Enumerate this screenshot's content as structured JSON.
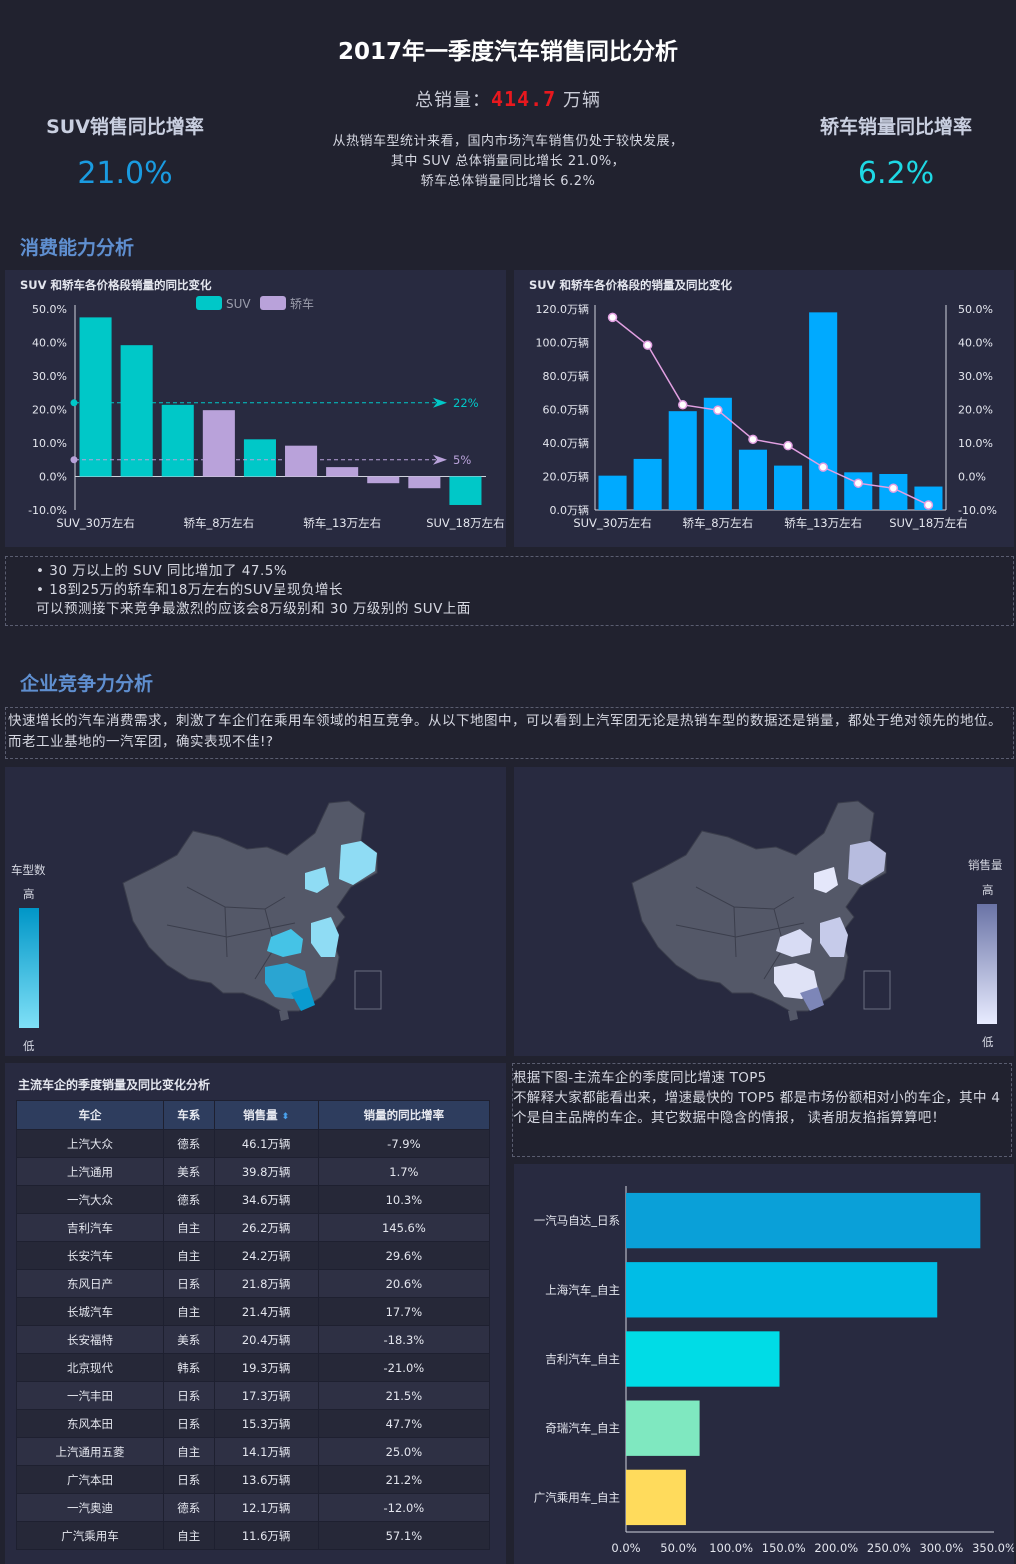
{
  "header": {
    "title": "2017年一季度汽车销售同比分析",
    "total_label": "总销量：",
    "total_value": "414.7",
    "total_unit": " 万辆",
    "desc_lines": [
      "从热销车型统计来看，国内市场汽车销售仍处于较快发展，",
      "其中 SUV 总体销量同比增长 21.0%，",
      "轿车总体销量同比增长 6.2%"
    ]
  },
  "kpi_left": {
    "label": "SUV销售同比增率",
    "value": "21.0%",
    "color": "#1a9be0"
  },
  "kpi_right": {
    "label": "轿车销量同比增率",
    "value": "6.2%",
    "color": "#1ed8e4"
  },
  "section1": "消费能力分析",
  "section2": "企业竞争力分析",
  "note1_lines": [
    "• 30 万以上的 SUV 同比增加了 47.5%",
    "• 18到25万的轿车和18万左右的SUV呈现负增长",
    "可以预测接下来竞争最激烈的应该会8万级别和 30 万级别的 SUV上面"
  ],
  "note2_text": "快速增长的汽车消费需求，刺激了车企们在乘用车领域的相互竞争。从以下地图中，可以看到上汽军团无论是热销车型的数据还是销量，都处于绝对领先的地位。而老工业基地的一汽军团，确实表现不佳!?",
  "note3_text": "根据下图-主流车企的季度同比增速 TOP5\n不解释大家都能看出来，增速最快的 TOP5 都是市场份额相对小的车企，其中 4 个是自主品牌的车企。其它数据中隐含的情报， 读者朋友掐指算算吧！",
  "map_left": {
    "legend_title": "车型数",
    "high": "高",
    "low": "低"
  },
  "map_right": {
    "legend_title": "销售量",
    "high": "高",
    "low": "低"
  },
  "table_title": "主流车企的季度销量及同比变化分析",
  "table": {
    "headers": [
      "车企",
      "车系",
      "销售量",
      "销量的同比增率"
    ],
    "rows": [
      [
        "上汽大众",
        "德系",
        "46.1万辆",
        "-7.9%"
      ],
      [
        "上汽通用",
        "美系",
        "39.8万辆",
        "1.7%"
      ],
      [
        "一汽大众",
        "德系",
        "34.6万辆",
        "10.3%"
      ],
      [
        "吉利汽车",
        "自主",
        "26.2万辆",
        "145.6%"
      ],
      [
        "长安汽车",
        "自主",
        "24.2万辆",
        "29.6%"
      ],
      [
        "东风日产",
        "日系",
        "21.8万辆",
        "20.6%"
      ],
      [
        "长城汽车",
        "自主",
        "21.4万辆",
        "17.7%"
      ],
      [
        "长安福特",
        "美系",
        "20.4万辆",
        "-18.3%"
      ],
      [
        "北京现代",
        "韩系",
        "19.3万辆",
        "-21.0%"
      ],
      [
        "一汽丰田",
        "日系",
        "17.3万辆",
        "21.5%"
      ],
      [
        "东风本田",
        "日系",
        "15.3万辆",
        "47.7%"
      ],
      [
        "上汽通用五菱",
        "自主",
        "14.1万辆",
        "25.0%"
      ],
      [
        "广汽本田",
        "日系",
        "13.6万辆",
        "21.2%"
      ],
      [
        "一汽奥迪",
        "德系",
        "12.1万辆",
        "-12.0%"
      ],
      [
        "广汽乘用车",
        "自主",
        "11.6万辆",
        "57.1%"
      ]
    ]
  },
  "chart_data": [
    {
      "type": "bar",
      "title": "SUV 和轿车各价格段销量的同比变化",
      "series": [
        {
          "name": "SUV",
          "color": "#00c8c8",
          "values": [
            47.5,
            39.2,
            21.4,
            null,
            11.1,
            null,
            null,
            null,
            null,
            -8.5
          ]
        },
        {
          "name": "轿车",
          "color": "#b9a2da",
          "values": [
            null,
            null,
            null,
            19.8,
            null,
            9.2,
            2.8,
            -2.0,
            -3.5,
            null
          ]
        }
      ],
      "tick_labels": [
        "SUV_30万左右",
        "轿车_8万左右",
        "轿车_13万左右",
        "SUV_18万左右"
      ],
      "ylim": [
        -10,
        50
      ],
      "yticks": [
        "50.0%",
        "40.0%",
        "30.0%",
        "20.0%",
        "10.0%",
        "0.0%",
        "-10.0%"
      ],
      "mark_lines": [
        {
          "value": 22,
          "label": "22%",
          "color": "#00c8c8"
        },
        {
          "value": 5,
          "label": "5%",
          "color": "#b9a2da"
        }
      ],
      "legend": "top-center"
    },
    {
      "type": "bar",
      "title": "SUV 和轿车各价格段的销量及同比变化",
      "bar_color": "#00aaff",
      "line_color": "#e2a0e2",
      "bar_values": [
        20.5,
        30.5,
        59,
        67,
        36,
        26.5,
        118,
        22.5,
        21.5,
        14
      ],
      "line_values": [
        47.5,
        39.2,
        21.4,
        19.8,
        11.1,
        9.2,
        2.8,
        -2.0,
        -3.5,
        -8.5
      ],
      "tick_labels": [
        "SUV_30万左右",
        "轿车_8万左右",
        "轿车_13万左右",
        "SUV_18万左右"
      ],
      "ylim_left": [
        0,
        120
      ],
      "ylim_right": [
        -10,
        50
      ],
      "yticks_left": [
        "120.0万辆",
        "100.0万辆",
        "80.0万辆",
        "60.0万辆",
        "40.0万辆",
        "20.0万辆",
        "0.0万辆"
      ],
      "yticks_right": [
        "50.0%",
        "40.0%",
        "30.0%",
        "20.0%",
        "10.0%",
        "0.0%",
        "-10.0%"
      ]
    },
    {
      "type": "bar",
      "orientation": "horizontal",
      "categories": [
        "一汽马自达_日系",
        "上海汽车_自主",
        "吉利汽车_自主",
        "奇瑞汽车_自主",
        "广汽乘用车_自主"
      ],
      "values": [
        337,
        296,
        146,
        70,
        57
      ],
      "colors": [
        "#0aa0d8",
        "#00bde6",
        "#00dce6",
        "#7fe8c0",
        "#ffdb5c"
      ],
      "xlim": [
        0,
        350
      ],
      "xticks": [
        "0.0%",
        "50.0%",
        "100.0%",
        "150.0%",
        "200.0%",
        "250.0%",
        "300.0%",
        "350.0%"
      ]
    }
  ]
}
